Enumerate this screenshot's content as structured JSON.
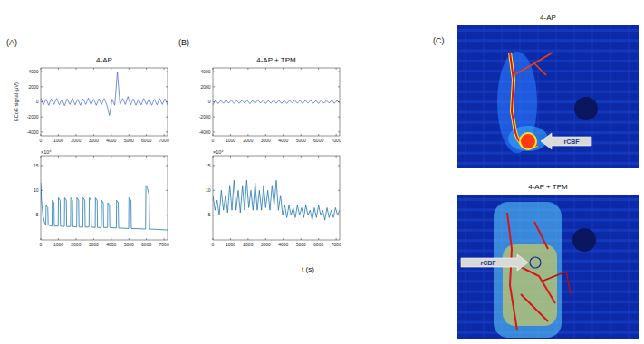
{
  "chart_data": [
    {
      "type": "line",
      "panel": "(A)",
      "title": "4-AP",
      "y_label": "ECoG signal (μV)",
      "x": [
        0,
        150,
        300,
        450,
        600,
        750,
        900,
        1050,
        1200,
        1350,
        1500,
        1650,
        1800,
        1950,
        2100,
        2250,
        2400,
        2550,
        2700,
        2850,
        3000,
        3150,
        3300,
        3450,
        3600,
        3750,
        3900,
        4050,
        4200,
        4350,
        4500,
        4650,
        4800,
        4950,
        5100,
        5250,
        5400,
        5550,
        5700,
        5850,
        6000,
        6150,
        6300,
        6450,
        6600,
        6750,
        6900,
        7050,
        7200
      ],
      "series": [
        {
          "color": "#2447c9",
          "values": [
            500,
            -400,
            350,
            -450,
            400,
            -350,
            450,
            -400,
            350,
            -500,
            400,
            -350,
            450,
            -400,
            350,
            -450,
            400,
            -350,
            500,
            -400,
            350,
            -450,
            400,
            -350,
            450,
            -400,
            -1800,
            350,
            -450,
            4000,
            -400,
            450,
            -350,
            700,
            -400,
            400,
            -450,
            350,
            -400,
            450,
            -350,
            400,
            -450,
            350,
            -400,
            450,
            -350,
            400,
            -400
          ]
        }
      ],
      "xlim": [
        0,
        7200
      ],
      "ylim": [
        -4500,
        4500
      ],
      "xticks": [
        0,
        1000,
        2000,
        3000,
        4000,
        5000,
        6000,
        7000
      ],
      "yticks": [
        -4000,
        -2000,
        0,
        2000,
        4000
      ]
    },
    {
      "type": "line",
      "y_multiplier": "×10⁴",
      "x": [
        0,
        40,
        120,
        220,
        290,
        305,
        400,
        420,
        640,
        655,
        750,
        770,
        990,
        1005,
        1100,
        1120,
        1340,
        1355,
        1450,
        1470,
        1690,
        1705,
        1800,
        1820,
        2040,
        2055,
        2150,
        2170,
        2390,
        2405,
        2500,
        2520,
        2740,
        2755,
        2850,
        2870,
        3090,
        3105,
        3200,
        3220,
        3440,
        3455,
        3550,
        3570,
        3790,
        3805,
        3900,
        3920,
        4290,
        4305,
        4400,
        4420,
        4990,
        5005,
        5120,
        5140,
        5950,
        5970,
        6050,
        6150,
        6180,
        7200
      ],
      "series": [
        {
          "color": "#1f77b4",
          "values": [
            11.5,
            8,
            5,
            3.5,
            3,
            7,
            6.5,
            3,
            2.8,
            8,
            7.5,
            2.8,
            2.8,
            8.5,
            8,
            2.8,
            2.7,
            8.5,
            8,
            2.7,
            2.7,
            8.5,
            8,
            2.7,
            2.6,
            8.5,
            8,
            2.6,
            2.6,
            8.5,
            8,
            2.6,
            2.6,
            8.5,
            8,
            2.6,
            2.5,
            8.5,
            8,
            2.5,
            2.5,
            8,
            7.5,
            2.5,
            2.5,
            7.5,
            7,
            2.5,
            2.4,
            8,
            7.5,
            2.4,
            2.3,
            8.5,
            8,
            2.3,
            2.2,
            11,
            10.5,
            9,
            2.2,
            2
          ]
        }
      ],
      "xlim": [
        0,
        7200
      ],
      "ylim": [
        0,
        17
      ],
      "xticks": [
        0,
        1000,
        2000,
        3000,
        4000,
        5000,
        6000,
        7000
      ],
      "yticks": [
        5,
        10,
        15
      ]
    },
    {
      "type": "line",
      "panel": "(B)",
      "title": "4-AP + TPM",
      "x": [
        0,
        150,
        300,
        450,
        600,
        750,
        900,
        1050,
        1200,
        1350,
        1500,
        1650,
        1800,
        1950,
        2100,
        2250,
        2400,
        2550,
        2700,
        2850,
        3000,
        3150,
        3300,
        3450,
        3600,
        3750,
        3900,
        4050,
        4200,
        4350,
        4500,
        4650,
        4800,
        4950,
        5100,
        5250,
        5400,
        5550,
        5700,
        5850,
        6000,
        6150,
        6300,
        6450,
        6600,
        6750,
        6900,
        7050,
        7200
      ],
      "series": [
        {
          "color": "#2447c9",
          "values": [
            -400,
            200,
            -250,
            180,
            -200,
            250,
            -180,
            200,
            -220,
            180,
            -200,
            230,
            -170,
            200,
            -250,
            190,
            -200,
            220,
            -180,
            200,
            -230,
            170,
            -200,
            240,
            -190,
            200,
            -210,
            180,
            -220,
            200,
            -180,
            230,
            -200,
            190,
            -240,
            200,
            -170,
            210,
            -200,
            180,
            -230,
            200,
            -190,
            220,
            -180,
            200,
            -210,
            190,
            -200
          ]
        }
      ],
      "xlim": [
        0,
        7200
      ],
      "ylim": [
        -4500,
        4500
      ],
      "xticks": [
        0,
        1000,
        2000,
        3000,
        4000,
        5000,
        6000,
        7000
      ],
      "yticks": [
        -4000,
        -2000,
        0,
        2000,
        4000
      ]
    },
    {
      "type": "line",
      "y_multiplier": "×10⁴",
      "x": [
        0,
        120,
        240,
        360,
        480,
        600,
        720,
        840,
        960,
        1080,
        1200,
        1320,
        1440,
        1560,
        1680,
        1800,
        1920,
        2040,
        2160,
        2280,
        2400,
        2520,
        2640,
        2760,
        2880,
        3000,
        3120,
        3240,
        3360,
        3480,
        3600,
        3720,
        3840,
        3960,
        4080,
        4200,
        4320,
        4440,
        4560,
        4680,
        4800,
        4920,
        5040,
        5160,
        5280,
        5400,
        5520,
        5640,
        5760,
        5880,
        6000,
        6120,
        6240,
        6360,
        6480,
        6600,
        6720,
        6840,
        6960,
        7080,
        7200
      ],
      "series": [
        {
          "color": "#1f77b4",
          "values": [
            9,
            6,
            8,
            5,
            10,
            6,
            9,
            5.5,
            11,
            6,
            12,
            6,
            10,
            5.5,
            11,
            6,
            12,
            6.5,
            10,
            6,
            11.5,
            6,
            10,
            6,
            11,
            6.5,
            10,
            6,
            11,
            7,
            12,
            6,
            9,
            5,
            7,
            4.5,
            7,
            5,
            6.5,
            4.5,
            7,
            5,
            6.5,
            4.5,
            7,
            5,
            6,
            4,
            6.5,
            4.5,
            7,
            5,
            6,
            4,
            6.5,
            4.5,
            6,
            4.5,
            6.5,
            5,
            6
          ]
        }
      ],
      "xlim": [
        0,
        7200
      ],
      "ylim": [
        0,
        17
      ],
      "xticks": [
        0,
        1000,
        2000,
        3000,
        4000,
        5000,
        6000,
        7000
      ],
      "yticks": [
        5,
        10,
        15
      ]
    }
  ],
  "x_label": "t (s)",
  "panel_c": {
    "panel": "(C)",
    "images": [
      {
        "title": "4-AP",
        "annotation": "rCBF"
      },
      {
        "title": "4-AP + TPM",
        "annotation": "rCBF"
      }
    ]
  }
}
